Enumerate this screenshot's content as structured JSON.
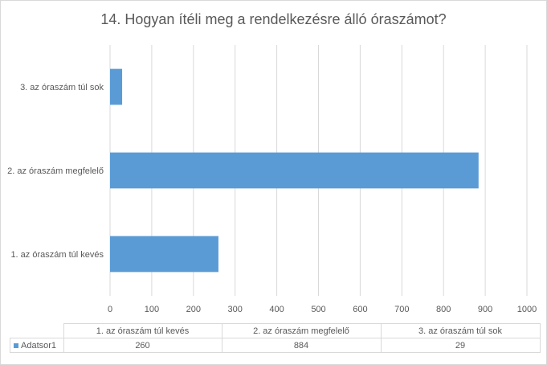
{
  "chart_data": {
    "type": "bar",
    "orientation": "horizontal",
    "title": "14. Hogyan ítéli meg a rendelkezésre álló óraszámot?",
    "categories": [
      "1. az óraszám túl kevés",
      "2. az óraszám megfelelő",
      "3. az óraszám túl sok"
    ],
    "series": [
      {
        "name": "Adatsor1",
        "values": [
          260,
          884,
          29
        ],
        "color": "#5b9bd5"
      }
    ],
    "xlim": [
      0,
      1000
    ],
    "xticks": [
      "0",
      "100",
      "200",
      "300",
      "400",
      "500",
      "600",
      "700",
      "800",
      "900",
      "1000"
    ],
    "grid": true,
    "data_table": true
  }
}
